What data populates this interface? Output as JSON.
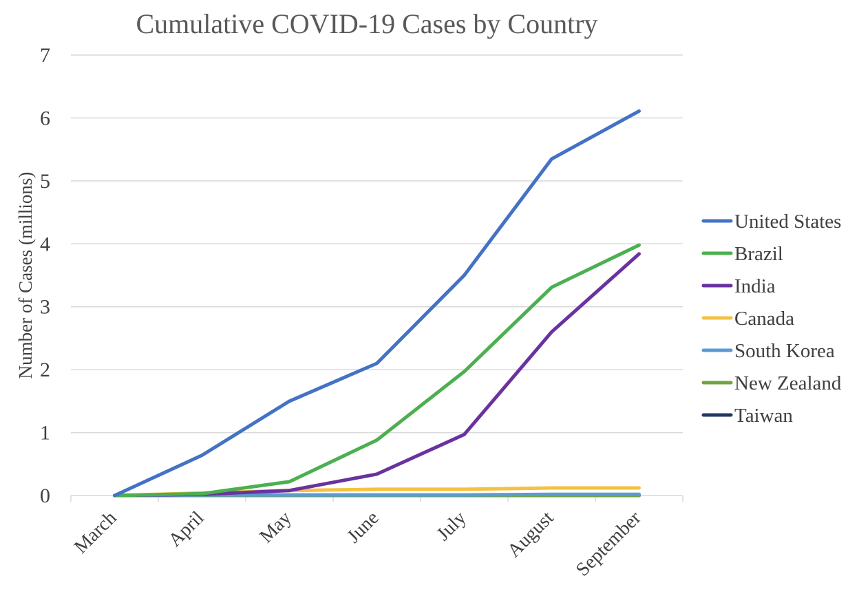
{
  "chart_data": {
    "type": "line",
    "title": "Cumulative COVID-19 Cases by Country",
    "xlabel": "",
    "ylabel": "Number of Cases (millions)",
    "categories": [
      "March",
      "April",
      "May",
      "June",
      "July",
      "August",
      "September"
    ],
    "ylim": [
      0,
      7
    ],
    "yticks": [
      "0",
      "1",
      "2",
      "3",
      "4",
      "5",
      "6",
      "7"
    ],
    "grid": true,
    "legend_position": "right",
    "series": [
      {
        "name": "United States",
        "color": "#4472C4",
        "values": [
          0.0,
          0.64,
          1.5,
          2.1,
          3.5,
          5.35,
          6.11
        ]
      },
      {
        "name": "Brazil",
        "color": "#4CAF50",
        "values": [
          0.0,
          0.03,
          0.22,
          0.88,
          1.97,
          3.31,
          3.98
        ]
      },
      {
        "name": "India",
        "color": "#6A329F",
        "values": [
          0.0,
          0.02,
          0.08,
          0.34,
          0.97,
          2.6,
          3.84
        ]
      },
      {
        "name": "Canada",
        "color": "#F6C142",
        "values": [
          0.0,
          0.04,
          0.08,
          0.1,
          0.1,
          0.12,
          0.12
        ]
      },
      {
        "name": "South Korea",
        "color": "#5B9BD5",
        "values": [
          0.0,
          0.01,
          0.01,
          0.01,
          0.01,
          0.02,
          0.02
        ]
      },
      {
        "name": "New Zealand",
        "color": "#70A444",
        "values": [
          0.0,
          0.0,
          0.0,
          0.0,
          0.0,
          0.0,
          0.0
        ]
      },
      {
        "name": "Taiwan",
        "color": "#1F3864",
        "values": [
          0.0,
          0.0,
          0.0,
          0.0,
          0.0,
          0.0,
          0.0
        ]
      }
    ]
  }
}
